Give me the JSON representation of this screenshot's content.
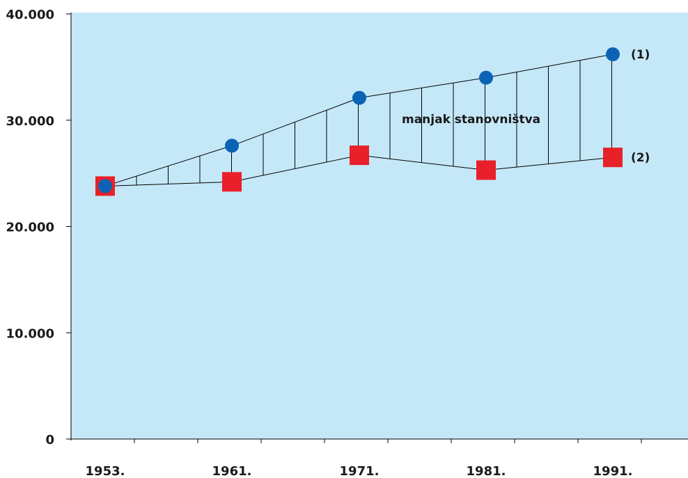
{
  "chart_data": {
    "type": "line",
    "title": "",
    "xlabel": "",
    "ylabel": "",
    "categories": [
      "1953.",
      "1961.",
      "1971.",
      "1981.",
      "1991."
    ],
    "y_ticks": [
      "0",
      "10.000",
      "20.000",
      "30.000",
      "40.000"
    ],
    "y_tick_values": [
      0,
      10000,
      20000,
      30000,
      40000
    ],
    "ylim": [
      0,
      40000
    ],
    "series": [
      {
        "name": "(1)",
        "marker": "circle",
        "color": "#0a63b5",
        "values": [
          23800,
          27600,
          32100,
          34000,
          36200
        ]
      },
      {
        "name": "(2)",
        "marker": "square",
        "color": "#e8202a",
        "values": [
          23800,
          24200,
          26700,
          25300,
          26500
        ]
      }
    ],
    "annotation": "manjak stanovništva",
    "plot_background": "#c5e8f8",
    "grid": false,
    "legend": "none"
  }
}
